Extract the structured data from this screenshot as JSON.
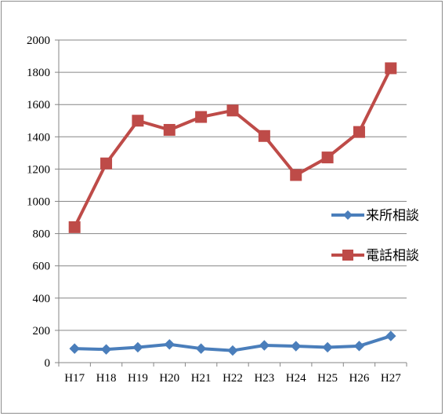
{
  "chart_data": {
    "type": "line",
    "title": "",
    "xlabel": "",
    "ylabel": "",
    "categories": [
      "H17",
      "H18",
      "H19",
      "H20",
      "H21",
      "H22",
      "H23",
      "H24",
      "H25",
      "H26",
      "H27"
    ],
    "ylim": [
      0,
      2000
    ],
    "yticks": [
      0,
      200,
      400,
      600,
      800,
      1000,
      1200,
      1400,
      1600,
      1800,
      2000
    ],
    "grid": true,
    "legend_position": "right",
    "series": [
      {
        "name": "来所相談",
        "color": "#4a7ebb",
        "marker": "diamond",
        "values": [
          87,
          82,
          95,
          113,
          87,
          75,
          107,
          102,
          95,
          103,
          165
        ]
      },
      {
        "name": "電話相談",
        "color": "#be4b48",
        "marker": "square",
        "values": [
          840,
          1235,
          1500,
          1443,
          1523,
          1563,
          1405,
          1163,
          1272,
          1430,
          1825
        ]
      }
    ]
  }
}
